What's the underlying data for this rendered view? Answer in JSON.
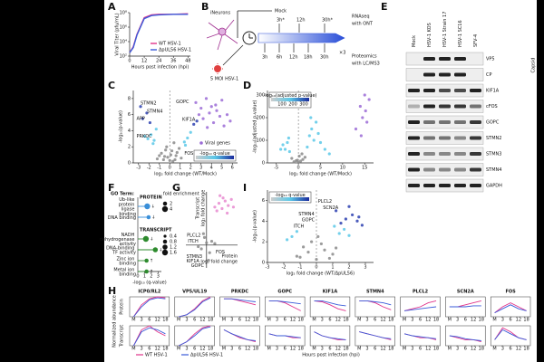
{
  "panel_labels": [
    "A",
    "B",
    "C",
    "D",
    "E",
    "F",
    "G",
    "H",
    "I"
  ],
  "diagram_b": {
    "cell": "iNeurons",
    "mock": "Mock",
    "infection": "5 MOI HSV-1",
    "rna_times": [
      "3h*",
      "12h",
      "30h*"
    ],
    "protein_times": [
      "3h",
      "6h",
      "12h",
      "18h",
      "30h"
    ],
    "replicates": "×3",
    "rnaseq": [
      "RNAseq",
      "with ONT"
    ],
    "proteomics": [
      "Proteomics",
      "with LC/MS3"
    ]
  },
  "blot_e": {
    "lanes": [
      "Mock",
      "HSV-1 KOS",
      "HSV-1 Strain 17",
      "HSV-1 SC16",
      "SFV-4"
    ],
    "lane_colors": [
      "#000000",
      "#d62020",
      "#d62020",
      "#d62020",
      "#2e9e2e"
    ],
    "proteins": [
      "VP5",
      "CP",
      "KIF1A",
      "cFOS",
      "GOPC",
      "STMN2",
      "STMN3",
      "STMN4",
      "GAPDH"
    ],
    "group_label": "Capsid"
  },
  "chart_data": [
    {
      "type": "line",
      "xlabel": "Hours post infection (hpi)",
      "ylabel": "Viral Titer (pfu/mL)",
      "x": [
        0,
        3,
        6,
        12,
        18,
        24,
        36,
        48
      ],
      "series": [
        {
          "name": "WT HSV-1",
          "color": "#e0338a",
          "values": [
            300,
            2000,
            100000,
            20000000,
            50000000,
            60000000,
            60000000,
            70000000
          ]
        },
        {
          "name": "ΔpUL56 HSV-1",
          "color": "#3a5bd9",
          "values": [
            300,
            1500,
            80000,
            15000000,
            40000000,
            50000000,
            60000000,
            60000000
          ]
        }
      ],
      "xlim": [
        0,
        50
      ],
      "xticks": [
        0,
        12,
        24,
        36,
        48
      ],
      "log_y": true,
      "ylim": [
        100,
        100000000
      ],
      "yticks": [
        {
          "value": 100,
          "label": "10²"
        },
        {
          "value": 10000,
          "label": "10⁴"
        },
        {
          "value": 1000000,
          "label": "10⁶"
        },
        {
          "value": 100000000,
          "label": "10⁸"
        }
      ],
      "legend": "lower right"
    },
    {
      "type": "scatter",
      "xlabel": "log₂ fold change (WT/Mock)",
      "ylabel": "-log₁₀(p-value)",
      "xlim": [
        -3.5,
        6.5
      ],
      "xticks": [
        -3,
        -2,
        -1,
        0,
        1,
        2,
        3,
        4,
        5,
        6
      ],
      "ylim": [
        0,
        9
      ],
      "yticks": [
        0,
        2,
        4,
        6,
        8
      ],
      "zero_line": true,
      "series": [
        {
          "color": "#8a8a8a",
          "x": [
            -1.2,
            -0.8,
            -0.5,
            -0.3,
            0,
            0.2,
            0.4,
            0.6,
            0.9,
            1.1,
            -0.6,
            0.3,
            0.1,
            -0.2,
            0.7,
            -1,
            0.5,
            -0.4
          ],
          "values": [
            0.5,
            1.2,
            0.8,
            2,
            0.3,
            1.5,
            2.5,
            0.9,
            1.8,
            0.6,
            0.4,
            0.2,
            1,
            0.7,
            1.3,
            0.9,
            0.4,
            1.6
          ]
        },
        {
          "color": "#5bc8e8",
          "x": [
            -2.1,
            -1.8,
            -1.5,
            -1.3,
            1.4,
            1.7,
            2,
            -2.4,
            -1.6,
            1.5
          ],
          "values": [
            3,
            3.5,
            2.8,
            4.2,
            2.6,
            3.1,
            3.8,
            3.3,
            2.4,
            2.2
          ]
        },
        {
          "color": "#2c3fb0",
          "x": [
            -2.6,
            -2.2,
            -1.9,
            2.3,
            2.6,
            -2.8
          ],
          "values": [
            5.5,
            6.2,
            5,
            4.8,
            5.2,
            7
          ]
        },
        {
          "name": "Viral genes",
          "color": "#9b6bd6",
          "x": [
            2.5,
            3,
            3.5,
            4,
            4.5,
            5,
            5.5,
            3.2,
            3.8,
            4.2,
            4.8,
            5.2,
            2.8,
            3.6,
            4.4,
            5.8
          ],
          "values": [
            7.5,
            6.8,
            8,
            7,
            6.5,
            7.8,
            6,
            5.5,
            6.2,
            5,
            5.8,
            4.6,
            6,
            4.4,
            7.2,
            5.2
          ]
        }
      ],
      "annotations": [
        {
          "text": "STMN2",
          "x": -2.8,
          "y": 7.4
        },
        {
          "text": "STMN4",
          "x": -2.2,
          "y": 6.4
        },
        {
          "text": "APP",
          "x": -3.2,
          "y": 5.5
        },
        {
          "text": "PRKDC",
          "x": -3.2,
          "y": 3.3
        },
        {
          "text": "GOPC",
          "x": 0.6,
          "y": 7.6
        },
        {
          "text": "KIF1A",
          "x": 1.2,
          "y": 5.4
        },
        {
          "text": "FOS",
          "x": 1.4,
          "y": 1.2
        }
      ],
      "colorbar": {
        "label": "-log₁₀ q-value"
      }
    },
    {
      "type": "scatter",
      "xlabel": "log₂ fold change (WT/Mock)",
      "ylabel": "-log₁₀(adjusted p-value)",
      "xlim": [
        -7,
        17
      ],
      "xticks": [
        -5,
        0,
        5,
        10,
        15
      ],
      "ylim": [
        0,
        320
      ],
      "yticks": [
        0,
        100,
        200,
        300
      ],
      "zero_line": true,
      "series": [
        {
          "color": "#8a8a8a",
          "x": [
            -1,
            -0.5,
            0,
            0.5,
            1,
            -1.5,
            1.5,
            0.2,
            -0.2,
            0.8
          ],
          "values": [
            5,
            10,
            2,
            8,
            15,
            20,
            25,
            30,
            12,
            40
          ]
        },
        {
          "color": "#5bc8e8",
          "x": [
            -3,
            -2.5,
            -2,
            2,
            2.5,
            3,
            3.5,
            -3.5,
            4,
            4.5,
            5,
            -4,
            2.8,
            -2.2,
            6,
            7
          ],
          "values": [
            60,
            90,
            50,
            70,
            120,
            150,
            100,
            80,
            180,
            130,
            90,
            60,
            200,
            110,
            60,
            40
          ]
        },
        {
          "color": "#9b6bd6",
          "x": [
            13,
            14,
            14.5,
            15,
            15.5,
            16,
            14.2,
            15.2
          ],
          "values": [
            150,
            250,
            200,
            300,
            180,
            280,
            120,
            230
          ]
        }
      ],
      "colorbar": {
        "label": "-log₁₀(adjusted p-value)",
        "ticks": [
          100,
          200,
          300
        ]
      }
    },
    {
      "type": "dot",
      "title": "GO Term:",
      "xlabel": "-log₁₀ (q-value)",
      "xlim": [
        0,
        3.5
      ],
      "xticks": [
        0,
        1,
        2,
        3
      ],
      "size_legend_title": "fold enrichment",
      "series": [
        {
          "name": "PROTEIN",
          "color": "#3a8fd9",
          "categories": [
            "Ub-like protein ligase binding",
            "DNA binding"
          ],
          "values": [
            1.4,
            1.6
          ],
          "sizes": [
            4,
            2
          ],
          "arrows": [
            "↓",
            "↓"
          ],
          "size_ticks": [
            2,
            4
          ]
        },
        {
          "name": "TRANSCRIPT",
          "color": "#2e8b2e",
          "categories": [
            "NADH dehydrogenase activity",
            "DNA-binding TF activity",
            "Zinc ion binding",
            "Metal ion binding"
          ],
          "values": [
            1.2,
            2.6,
            1.3,
            1.3
          ],
          "sizes": [
            1.6,
            1.2,
            0.8,
            0.8
          ],
          "arrows": [
            "↓",
            "↓",
            "↑",
            "↑"
          ],
          "size_ticks": [
            0.4,
            0.8,
            1.2,
            1.6
          ]
        }
      ]
    },
    {
      "type": "scatter",
      "axes_at_origin": true,
      "xlabel": "Protein",
      "xlabel2": "log₂ fold change",
      "ylabel": "Transcript",
      "ylabel2": "log₂ fold change",
      "xlim": [
        -2,
        3
      ],
      "ylim": [
        -3,
        7
      ],
      "series": [
        {
          "color": "#8a8a8a",
          "x": [
            -0.5,
            0,
            0.3,
            -0.2,
            0.5,
            -0.8,
            0.2,
            0.8,
            -0.3
          ],
          "values": [
            -0.5,
            0.3,
            -1,
            1,
            0.5,
            -0.2,
            -2,
            0.2,
            1.5
          ]
        },
        {
          "color": "#e88ad0",
          "x": [
            0.8,
            1.2,
            1.5,
            1.8,
            2.1,
            2.4,
            1,
            1.6,
            2,
            2.6,
            1.3
          ],
          "values": [
            5,
            5.5,
            4.8,
            5.8,
            5.2,
            6,
            4.5,
            6.2,
            4.2,
            5,
            6.5
          ]
        }
      ],
      "annotations": [
        {
          "text": "PLCL2",
          "x": -1.9,
          "y": 1.3
        },
        {
          "text": "ITCH",
          "x": -1.8,
          "y": 0.5
        },
        {
          "text": "STMN3",
          "x": -1.95,
          "y": -1.5
        },
        {
          "text": "KIF1A",
          "x": -1.95,
          "y": -2.1
        },
        {
          "text": "GOPC",
          "x": -1.5,
          "y": -2.7
        },
        {
          "text": "FOS",
          "x": 0.9,
          "y": -0.9
        }
      ]
    },
    {
      "type": "scatter",
      "xlabel": "log₂ fold change (WT/ΔpUL56)",
      "ylabel": "-log₁₀(p-value)",
      "xlim": [
        -3,
        3.5
      ],
      "xticks": [
        -3,
        -2,
        -1,
        0,
        1,
        2,
        3
      ],
      "ylim": [
        0,
        7
      ],
      "yticks": [
        0,
        2,
        4,
        6
      ],
      "zero_line": true,
      "series": [
        {
          "color": "#8a8a8a",
          "x": [
            -1,
            -0.5,
            0,
            0.5,
            1,
            -0.3,
            0.3,
            0.8,
            -0.8,
            0.1,
            -1.2,
            1.2
          ],
          "values": [
            0.5,
            1,
            0.3,
            1.2,
            0.8,
            2,
            1.8,
            0.4,
            1.5,
            2.5,
            0.6,
            1.4
          ]
        },
        {
          "color": "#5bc8e8",
          "x": [
            -1.5,
            -1.2,
            1.4,
            1.7,
            2,
            -1.8,
            1.1
          ],
          "values": [
            2.5,
            3,
            2.8,
            3.2,
            2.6,
            2.2,
            3.5
          ]
        },
        {
          "color": "#2c3fb0",
          "x": [
            1.5,
            1.8,
            2.2,
            2.5,
            2.8,
            1.2,
            2,
            2.6
          ],
          "values": [
            3.8,
            4.2,
            4.6,
            4,
            3.6,
            5,
            5.4,
            4.4
          ]
        }
      ],
      "annotations": [
        {
          "text": "PLCL2",
          "x": 0.1,
          "y": 5.9
        },
        {
          "text": "SCN2A",
          "x": 0.4,
          "y": 5.3
        },
        {
          "text": "STMN4",
          "x": -1.1,
          "y": 4.7
        },
        {
          "text": "GOPC",
          "x": -0.9,
          "y": 4.1
        },
        {
          "text": "ITCH",
          "x": -1.4,
          "y": 3.5
        }
      ],
      "colorbar": {
        "label": "-log₁₀ q-value"
      }
    },
    {
      "type": "small_multiples",
      "ylabel": "Normalized abundance",
      "row_labels": [
        "Protein",
        "Transcript"
      ],
      "xlabel": "Hours post infection (hpi)",
      "categories": [
        "M",
        "3",
        "6",
        "12",
        "18"
      ],
      "ylim": [
        0,
        1
      ],
      "series": [
        {
          "name": "WT HSV-1",
          "color": "#e0338a"
        },
        {
          "name": "ΔpUL56 HSV-1",
          "color": "#3a5bd9"
        }
      ],
      "panels": [
        {
          "title": "ICP0/RL2",
          "protein": [
            [
              0,
              0.6,
              0.9,
              1,
              0.95
            ],
            [
              0,
              0.5,
              0.85,
              0.95,
              0.9
            ]
          ],
          "transcript": [
            [
              0,
              0.8,
              1,
              0.7,
              0.5
            ],
            [
              0,
              0.7,
              0.9,
              0.8,
              0.6
            ]
          ]
        },
        {
          "title": "VP5/UL19",
          "protein": [
            [
              0,
              0.1,
              0.4,
              0.8,
              1
            ],
            [
              0,
              0.1,
              0.35,
              0.75,
              0.95
            ]
          ],
          "transcript": [
            [
              0,
              0.2,
              0.6,
              0.9,
              1
            ],
            [
              0,
              0.2,
              0.5,
              0.85,
              0.95
            ]
          ]
        },
        {
          "title": "PRKDC",
          "protein": [
            [
              0.9,
              0.9,
              0.8,
              0.7,
              0.6
            ],
            [
              0.9,
              0.9,
              0.85,
              0.8,
              0.75
            ]
          ],
          "transcript": [
            [
              0.8,
              0.6,
              0.4,
              0.3,
              0.2
            ],
            [
              0.8,
              0.6,
              0.45,
              0.3,
              0.25
            ]
          ]
        },
        {
          "title": "GOPC",
          "protein": [
            [
              0.8,
              0.8,
              0.7,
              0.5,
              0.3
            ],
            [
              0.8,
              0.8,
              0.75,
              0.7,
              0.65
            ]
          ],
          "transcript": [
            [
              0.6,
              0.5,
              0.5,
              0.4,
              0.4
            ],
            [
              0.6,
              0.5,
              0.5,
              0.45,
              0.4
            ]
          ]
        },
        {
          "title": "KIF1A",
          "protein": [
            [
              0.8,
              0.75,
              0.6,
              0.4,
              0.3
            ],
            [
              0.8,
              0.8,
              0.7,
              0.6,
              0.55
            ]
          ],
          "transcript": [
            [
              0.7,
              0.5,
              0.4,
              0.3,
              0.3
            ],
            [
              0.7,
              0.5,
              0.4,
              0.35,
              0.3
            ]
          ]
        },
        {
          "title": "STMN4",
          "protein": [
            [
              0.8,
              0.8,
              0.7,
              0.5,
              0.35
            ],
            [
              0.8,
              0.8,
              0.75,
              0.7,
              0.6
            ]
          ],
          "transcript": [
            [
              0.7,
              0.6,
              0.5,
              0.4,
              0.3
            ],
            [
              0.7,
              0.6,
              0.5,
              0.4,
              0.35
            ]
          ]
        },
        {
          "title": "PLCL2",
          "protein": [
            [
              0.3,
              0.4,
              0.5,
              0.7,
              0.8
            ],
            [
              0.3,
              0.35,
              0.4,
              0.45,
              0.5
            ]
          ],
          "transcript": [
            [
              0.6,
              0.5,
              0.4,
              0.4,
              0.3
            ],
            [
              0.6,
              0.5,
              0.45,
              0.4,
              0.35
            ]
          ]
        },
        {
          "title": "SCN2A",
          "protein": [
            [
              0.5,
              0.5,
              0.6,
              0.7,
              0.8
            ],
            [
              0.5,
              0.5,
              0.5,
              0.55,
              0.55
            ]
          ],
          "transcript": [
            [
              0.5,
              0.4,
              0.3,
              0.3,
              0.2
            ],
            [
              0.5,
              0.45,
              0.35,
              0.3,
              0.25
            ]
          ]
        },
        {
          "title": "FOS",
          "protein": [
            [
              0.2,
              0.5,
              0.7,
              0.5,
              0.3
            ],
            [
              0.2,
              0.4,
              0.6,
              0.4,
              0.3
            ]
          ],
          "transcript": [
            [
              0.3,
              0.9,
              0.7,
              0.4,
              0.3
            ],
            [
              0.3,
              0.8,
              0.6,
              0.4,
              0.3
            ]
          ]
        }
      ]
    }
  ]
}
